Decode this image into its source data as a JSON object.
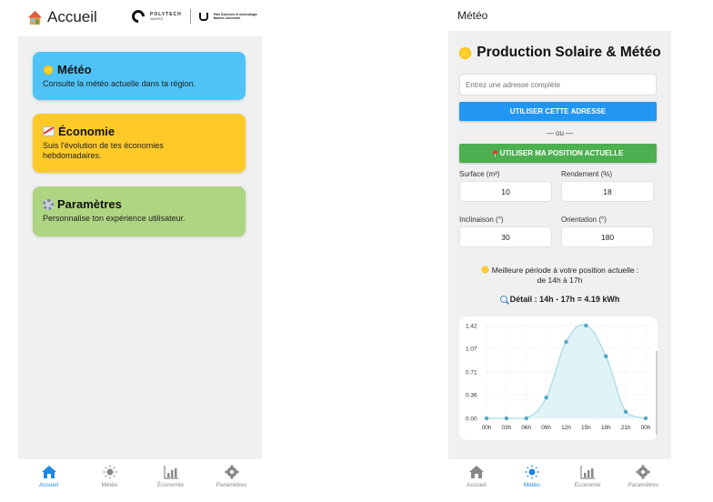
{
  "left_screen": {
    "header": {
      "title": "Accueil",
      "title_icon": "house-icon",
      "logo_polytech": "POLYTECH",
      "logo_polytech_sub": "NANTES",
      "logo_nu_line1": "Pôle Sciences et technologie",
      "logo_nu_line2": "Nantes Université"
    },
    "cards": [
      {
        "icon": "sun-icon",
        "title": "Météo",
        "description": "Consulte la météo actuelle dans ta région.",
        "color": "#4fc3f7"
      },
      {
        "icon": "chart-increasing-icon",
        "title": "Économie",
        "description": "Suis l'évolution de tes économies hebdomadaires.",
        "color": "#ffca28"
      },
      {
        "icon": "gear-icon",
        "title": "Paramètres",
        "description": "Personnalise ton expérience utilisateur.",
        "color": "#aed581"
      }
    ],
    "bottom_nav": {
      "active": "Accueil",
      "items": [
        {
          "label": "Accueil",
          "icon": "home-icon"
        },
        {
          "label": "Météo",
          "icon": "sun-icon"
        },
        {
          "label": "Économie",
          "icon": "bar-chart-icon"
        },
        {
          "label": "Paramètres",
          "icon": "gear-icon"
        }
      ]
    }
  },
  "right_screen": {
    "header": {
      "title": "Météo"
    },
    "heading": "Production Solaire & Météo",
    "address_input": {
      "placeholder": "Entrez une adresse complète",
      "value": ""
    },
    "use_address_button": "UTILISER CETTE ADRESSE",
    "or_separator": "— ou —",
    "use_location_button": "UTILISER MA POSITION ACTUELLE",
    "fields": [
      {
        "label": "Surface (m²)",
        "value": "10"
      },
      {
        "label": "Rendement (%)",
        "value": "18"
      },
      {
        "label": "Inclinaison (°)",
        "value": "30"
      },
      {
        "label": "Orientation (°)",
        "value": "180"
      }
    ],
    "best_period_line1": "Meilleure période à votre position actuelle :",
    "best_period_line2": "de 14h à 17h",
    "detail": "Détail : 14h - 17h = 4.19 kWh",
    "bottom_nav": {
      "active": "Météo",
      "items": [
        {
          "label": "Accueil",
          "icon": "home-icon"
        },
        {
          "label": "Météo",
          "icon": "sun-icon"
        },
        {
          "label": "Économie",
          "icon": "bar-chart-icon"
        },
        {
          "label": "Paramètres",
          "icon": "gear-icon"
        }
      ]
    }
  },
  "colors": {
    "accent_blue": "#2196f3",
    "accent_green": "#4caf50",
    "nav_active": "#1e88e5",
    "chart_line": "#a8dce6",
    "chart_point": "#4fa8c8"
  },
  "chart_data": {
    "type": "area",
    "title": "",
    "xlabel": "",
    "ylabel": "",
    "categories": [
      "00h",
      "03h",
      "06h",
      "09h",
      "12h",
      "15h",
      "18h",
      "21h",
      "00h"
    ],
    "values": [
      0.0,
      0.0,
      0.0,
      0.32,
      1.17,
      1.42,
      0.95,
      0.1,
      0.0
    ],
    "y_ticks": [
      "0.00",
      "0.36",
      "0.71",
      "1.07",
      "1.42"
    ],
    "ylim": [
      0,
      1.42
    ],
    "grid": true,
    "legend": false
  }
}
